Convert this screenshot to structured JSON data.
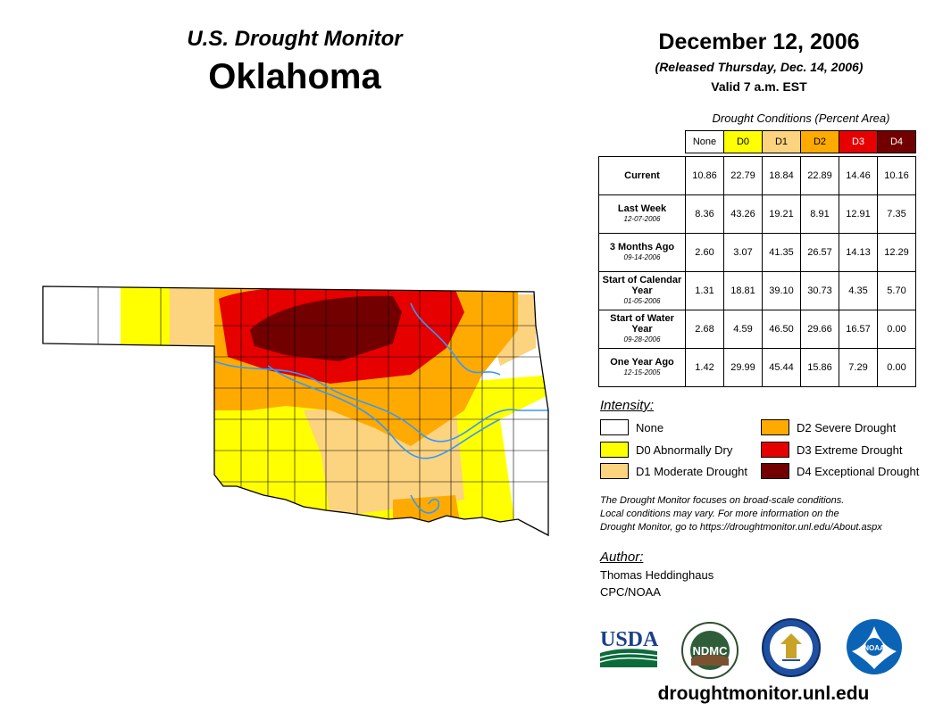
{
  "header": {
    "super_title": "U.S. Drought Monitor",
    "state": "Oklahoma",
    "date": "December 12, 2006",
    "released": "(Released Thursday, Dec. 14, 2006)",
    "valid": "Valid 7 a.m. EST"
  },
  "table": {
    "caption": "Drought Conditions (Percent Area)",
    "columns": [
      {
        "label": "None",
        "color": "#ffffff",
        "text_color": "#000000"
      },
      {
        "label": "D0",
        "color": "#ffff00",
        "text_color": "#000000"
      },
      {
        "label": "D1",
        "color": "#fcd37f",
        "text_color": "#000000"
      },
      {
        "label": "D2",
        "color": "#ffaa00",
        "text_color": "#000000"
      },
      {
        "label": "D3",
        "color": "#e60000",
        "text_color": "#ffffff"
      },
      {
        "label": "D4",
        "color": "#730000",
        "text_color": "#ffffff"
      }
    ],
    "rows": [
      {
        "label": "Current",
        "date": "",
        "values": [
          "10.86",
          "22.79",
          "18.84",
          "22.89",
          "14.46",
          "10.16"
        ]
      },
      {
        "label": "Last Week",
        "date": "12-07-2006",
        "values": [
          "8.36",
          "43.26",
          "19.21",
          "8.91",
          "12.91",
          "7.35"
        ]
      },
      {
        "label": "3 Months Ago",
        "date": "09-14-2006",
        "values": [
          "2.60",
          "3.07",
          "41.35",
          "26.57",
          "14.13",
          "12.29"
        ]
      },
      {
        "label": "Start of Calendar Year",
        "date": "01-05-2006",
        "values": [
          "1.31",
          "18.81",
          "39.10",
          "30.73",
          "4.35",
          "5.70"
        ]
      },
      {
        "label": "Start of Water Year",
        "date": "09-28-2006",
        "values": [
          "2.68",
          "4.59",
          "46.50",
          "29.66",
          "16.57",
          "0.00"
        ]
      },
      {
        "label": "One Year Ago",
        "date": "12-15-2005",
        "values": [
          "1.42",
          "29.99",
          "45.44",
          "15.86",
          "7.29",
          "0.00"
        ]
      }
    ]
  },
  "legend": {
    "title": "Intensity:",
    "items": [
      {
        "label": "None",
        "color": "#ffffff"
      },
      {
        "label": "D0 Abnormally Dry",
        "color": "#ffff00"
      },
      {
        "label": "D1 Moderate Drought",
        "color": "#fcd37f"
      },
      {
        "label": "D2 Severe Drought",
        "color": "#ffaa00"
      },
      {
        "label": "D3 Extreme Drought",
        "color": "#e60000"
      },
      {
        "label": "D4 Exceptional Drought",
        "color": "#730000"
      }
    ]
  },
  "note": {
    "line1": "The Drought Monitor focuses on broad-scale conditions.",
    "line2": "Local conditions may vary. For more information on the",
    "line3": "Drought Monitor, go to https://droughtmonitor.unl.edu/About.aspx"
  },
  "author": {
    "label": "Author:",
    "name": "Thomas Heddinghaus",
    "org": "CPC/NOAA"
  },
  "logos": {
    "usda": "USDA",
    "ndmc": "NDMC",
    "noaa": "NOAA"
  },
  "website": "droughtmonitor.unl.edu",
  "map": {
    "colors": {
      "none": "#ffffff",
      "d0": "#ffff00",
      "d1": "#fcd37f",
      "d2": "#ffaa00",
      "d3": "#e60000",
      "d4": "#730000",
      "river": "#3399ff",
      "county_line": "#000000"
    }
  }
}
